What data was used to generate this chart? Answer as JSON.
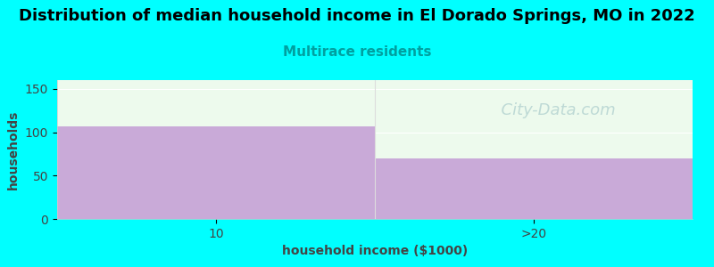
{
  "title": "Distribution of median household income in El Dorado Springs, MO in 2022",
  "subtitle": "Multirace residents",
  "xlabel": "household income ($1000)",
  "ylabel": "households",
  "categories": [
    "10",
    ">20"
  ],
  "values": [
    107,
    70
  ],
  "bar_color": "#c9aad8",
  "background_color": "#00ffff",
  "plot_bg_color": "#edfaed",
  "title_fontsize": 13,
  "subtitle_fontsize": 11,
  "subtitle_color": "#00a0a0",
  "axis_label_fontsize": 10,
  "tick_fontsize": 10,
  "ylim": [
    0,
    160
  ],
  "yticks": [
    0,
    50,
    100,
    150
  ],
  "watermark_text": "  City-Data.com",
  "watermark_color": "#aacccc",
  "watermark_fontsize": 13
}
